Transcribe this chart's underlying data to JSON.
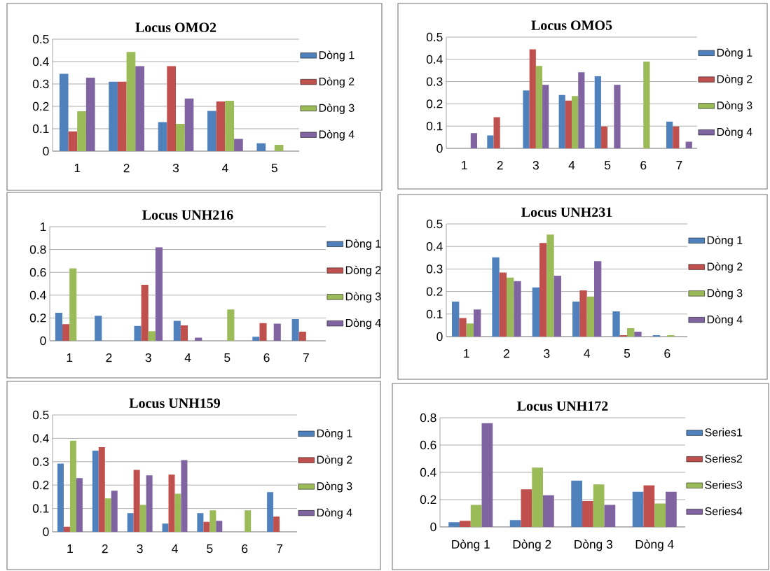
{
  "chart_data": [
    {
      "type": "bar",
      "title": "Locus OMO2",
      "categories": [
        "1",
        "2",
        "3",
        "4",
        "5"
      ],
      "ylim": [
        0,
        0.5
      ],
      "yticks": [
        0,
        0.1,
        0.2,
        0.3,
        0.4,
        0.5
      ],
      "grid": "y",
      "legend": "right",
      "series": [
        {
          "name": "Dòng 1",
          "color": "#4f81bd",
          "values": [
            0.345,
            0.31,
            0.13,
            0.18,
            0.035
          ]
        },
        {
          "name": "Dòng 2",
          "color": "#c0504d",
          "values": [
            0.088,
            0.31,
            0.38,
            0.222,
            0
          ]
        },
        {
          "name": "Dòng 3",
          "color": "#9bbb59",
          "values": [
            0.178,
            0.443,
            0.122,
            0.225,
            0.028
          ]
        },
        {
          "name": "Dòng 4",
          "color": "#8064a2",
          "values": [
            0.328,
            0.38,
            0.235,
            0.055,
            0
          ]
        }
      ]
    },
    {
      "type": "bar",
      "title": "Locus OMO5",
      "categories": [
        "1",
        "2",
        "3",
        "4",
        "5",
        "6",
        "7"
      ],
      "ylim": [
        0,
        0.5
      ],
      "yticks": [
        0,
        0.1,
        0.2,
        0.3,
        0.4,
        0.5
      ],
      "grid": "y",
      "legend": "right",
      "series": [
        {
          "name": "Dòng 1",
          "color": "#4f81bd",
          "values": [
            0,
            0.058,
            0.26,
            0.24,
            0.325,
            0,
            0.12
          ]
        },
        {
          "name": "Dòng 2",
          "color": "#c0504d",
          "values": [
            0,
            0.14,
            0.445,
            0.215,
            0.098,
            0,
            0.098
          ]
        },
        {
          "name": "Dòng 3",
          "color": "#9bbb59",
          "values": [
            0,
            0,
            0.37,
            0.235,
            0,
            0.39,
            0
          ]
        },
        {
          "name": "Dòng 4",
          "color": "#8064a2",
          "values": [
            0.068,
            0,
            0.285,
            0.342,
            0.285,
            0,
            0.03
          ]
        }
      ]
    },
    {
      "type": "bar",
      "title": "Locus UNH216",
      "categories": [
        "1",
        "2",
        "3",
        "4",
        "5",
        "6",
        "7"
      ],
      "ylim": [
        0,
        1
      ],
      "yticks": [
        0,
        0.2,
        0.4,
        0.6,
        0.8,
        1
      ],
      "grid": "y",
      "legend": "right",
      "series": [
        {
          "name": "Dòng 1",
          "color": "#4f81bd",
          "values": [
            0.245,
            0.22,
            0.13,
            0.175,
            0,
            0.035,
            0.19
          ]
        },
        {
          "name": "Dòng 2",
          "color": "#c0504d",
          "values": [
            0.145,
            0,
            0.49,
            0.135,
            0,
            0.155,
            0.08
          ]
        },
        {
          "name": "Dòng 3",
          "color": "#9bbb59",
          "values": [
            0.635,
            0,
            0.085,
            0,
            0.275,
            0,
            0
          ]
        },
        {
          "name": "Dòng 4",
          "color": "#8064a2",
          "values": [
            0,
            0,
            0.82,
            0.028,
            0,
            0.15,
            0
          ]
        }
      ]
    },
    {
      "type": "bar",
      "title": "Locus UNH231",
      "categories": [
        "1",
        "2",
        "3",
        "4",
        "5",
        "6"
      ],
      "ylim": [
        0,
        0.5
      ],
      "yticks": [
        0,
        0.1,
        0.2,
        0.3,
        0.4,
        0.5
      ],
      "grid": "y",
      "legend": "right",
      "series": [
        {
          "name": "Dòng 1",
          "color": "#4f81bd",
          "values": [
            0.155,
            0.352,
            0.218,
            0.155,
            0.112,
            0.006
          ]
        },
        {
          "name": "Dòng 2",
          "color": "#c0504d",
          "values": [
            0.082,
            0.284,
            0.415,
            0.205,
            0.006,
            0
          ]
        },
        {
          "name": "Dòng 3",
          "color": "#9bbb59",
          "values": [
            0.058,
            0.262,
            0.453,
            0.178,
            0.037,
            0.006
          ]
        },
        {
          "name": "Dòng 4",
          "color": "#8064a2",
          "values": [
            0.12,
            0.246,
            0.27,
            0.335,
            0.022,
            0
          ]
        }
      ]
    },
    {
      "type": "bar",
      "title": "Locus UNH159",
      "categories": [
        "1",
        "2",
        "3",
        "4",
        "5",
        "6",
        "7"
      ],
      "ylim": [
        0,
        0.5
      ],
      "yticks": [
        0,
        0.1,
        0.2,
        0.3,
        0.4,
        0.5
      ],
      "grid": "y",
      "legend": "right",
      "series": [
        {
          "name": "Dòng 1",
          "color": "#4f81bd",
          "values": [
            0.292,
            0.347,
            0.08,
            0.035,
            0.08,
            0,
            0.17
          ]
        },
        {
          "name": "Dòng 2",
          "color": "#c0504d",
          "values": [
            0.022,
            0.362,
            0.265,
            0.245,
            0.043,
            0,
            0.065
          ]
        },
        {
          "name": "Dòng 3",
          "color": "#9bbb59",
          "values": [
            0.39,
            0.143,
            0.115,
            0.163,
            0.092,
            0.092,
            0
          ]
        },
        {
          "name": "Dòng 4",
          "color": "#8064a2",
          "values": [
            0.23,
            0.176,
            0.242,
            0.307,
            0.047,
            0,
            0
          ]
        }
      ]
    },
    {
      "type": "bar",
      "title": "Locus UNH172",
      "categories": [
        "Dòng 1",
        "Dòng 2",
        "Dòng 3",
        "Dòng 4"
      ],
      "ylim": [
        0,
        0.8
      ],
      "yticks": [
        0,
        0.2,
        0.4,
        0.6,
        0.8
      ],
      "grid": "y",
      "legend": "right",
      "series": [
        {
          "name": "Series1",
          "color": "#4f81bd",
          "values": [
            0.035,
            0.05,
            0.34,
            0.258
          ]
        },
        {
          "name": "Series2",
          "color": "#c0504d",
          "values": [
            0.045,
            0.275,
            0.19,
            0.305
          ]
        },
        {
          "name": "Series3",
          "color": "#9bbb59",
          "values": [
            0.162,
            0.435,
            0.312,
            0.172
          ]
        },
        {
          "name": "Series4",
          "color": "#8064a2",
          "values": [
            0.76,
            0.232,
            0.162,
            0.258
          ]
        }
      ]
    }
  ]
}
